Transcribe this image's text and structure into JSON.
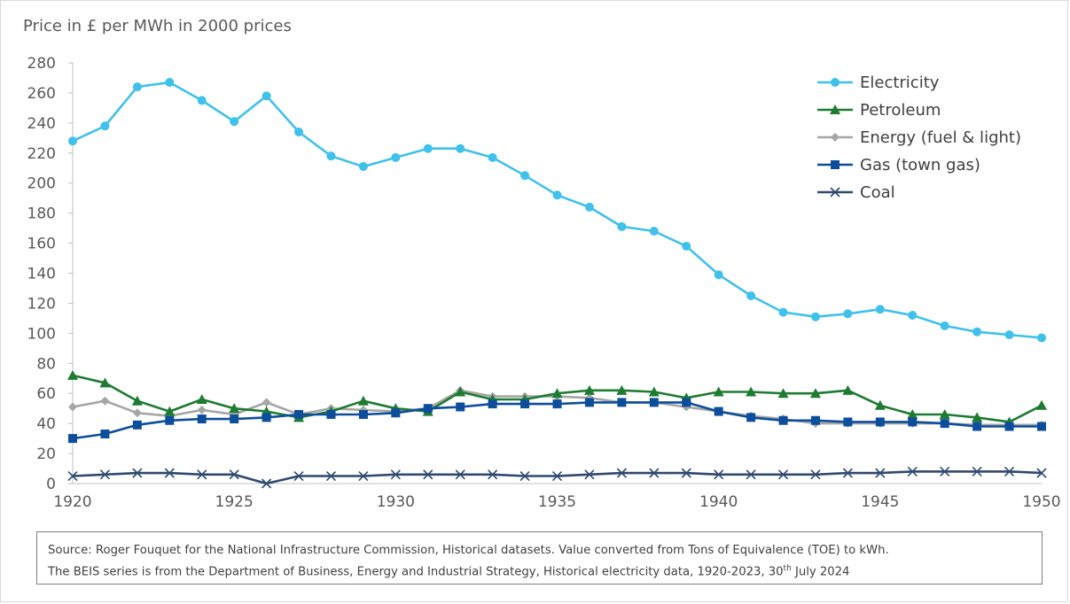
{
  "chart_data": {
    "type": "line",
    "ylabel": "Price in £ per MWh in 2000 prices",
    "ylim": [
      0,
      280
    ],
    "yticks": [
      0,
      20,
      40,
      60,
      80,
      100,
      120,
      140,
      160,
      180,
      200,
      220,
      240,
      260,
      280
    ],
    "xlim": [
      1920,
      1950
    ],
    "xticks": [
      1920,
      1925,
      1930,
      1935,
      1940,
      1945,
      1950
    ],
    "x": [
      1920,
      1921,
      1922,
      1923,
      1924,
      1925,
      1926,
      1927,
      1928,
      1929,
      1930,
      1931,
      1932,
      1933,
      1934,
      1935,
      1936,
      1937,
      1938,
      1939,
      1940,
      1941,
      1942,
      1943,
      1944,
      1945,
      1946,
      1947,
      1948,
      1949,
      1950
    ],
    "legend_position": "top-right",
    "grid": false,
    "series": [
      {
        "name": "Electricity",
        "color": "#3FC1EC",
        "marker": "circle",
        "values": [
          228,
          238,
          264,
          267,
          255,
          241,
          258,
          234,
          218,
          211,
          217,
          223,
          223,
          217,
          205,
          192,
          184,
          171,
          168,
          158,
          139,
          125,
          114,
          111,
          113,
          116,
          112,
          105,
          101,
          99,
          97
        ]
      },
      {
        "name": "Petroleum",
        "color": "#1E7B32",
        "marker": "triangle",
        "values": [
          72,
          67,
          55,
          48,
          56,
          50,
          48,
          44,
          48,
          55,
          50,
          48,
          61,
          56,
          56,
          60,
          62,
          62,
          61,
          57,
          61,
          61,
          60,
          60,
          62,
          52,
          46,
          46,
          44,
          41,
          52
        ]
      },
      {
        "name": "Energy (fuel & light)",
        "color": "#A6A6A6",
        "marker": "diamond",
        "values": [
          51,
          55,
          47,
          45,
          49,
          46,
          54,
          46,
          50,
          49,
          48,
          50,
          62,
          58,
          58,
          58,
          57,
          54,
          54,
          51,
          48,
          45,
          43,
          40,
          40,
          40,
          40,
          40,
          39,
          39,
          39
        ]
      },
      {
        "name": "Gas (town gas)",
        "color": "#0D4E9C",
        "marker": "square",
        "values": [
          30,
          33,
          39,
          42,
          43,
          43,
          44,
          46,
          46,
          46,
          47,
          50,
          51,
          53,
          53,
          53,
          54,
          54,
          54,
          54,
          48,
          44,
          42,
          42,
          41,
          41,
          41,
          40,
          38,
          38,
          38
        ]
      },
      {
        "name": "Coal",
        "color": "#2F4A6E",
        "marker": "x",
        "values": [
          5,
          6,
          7,
          7,
          6,
          6,
          0,
          5,
          5,
          5,
          6,
          6,
          6,
          6,
          5,
          5,
          6,
          7,
          7,
          7,
          6,
          6,
          6,
          6,
          7,
          7,
          8,
          8,
          8,
          8,
          7
        ]
      }
    ]
  },
  "source": {
    "line1": "Source: Roger Fouquet for the National Infrastructure Commission, Historical datasets. Value converted from  Tons of Equivalence (TOE) to kWh.",
    "line2_pre": "The BEIS series is from the Department of Business, Energy and Industrial Strategy, Historical electricity data, 1920-2023, 30",
    "line2_sup": "th",
    "line2_post": " July 2024"
  }
}
